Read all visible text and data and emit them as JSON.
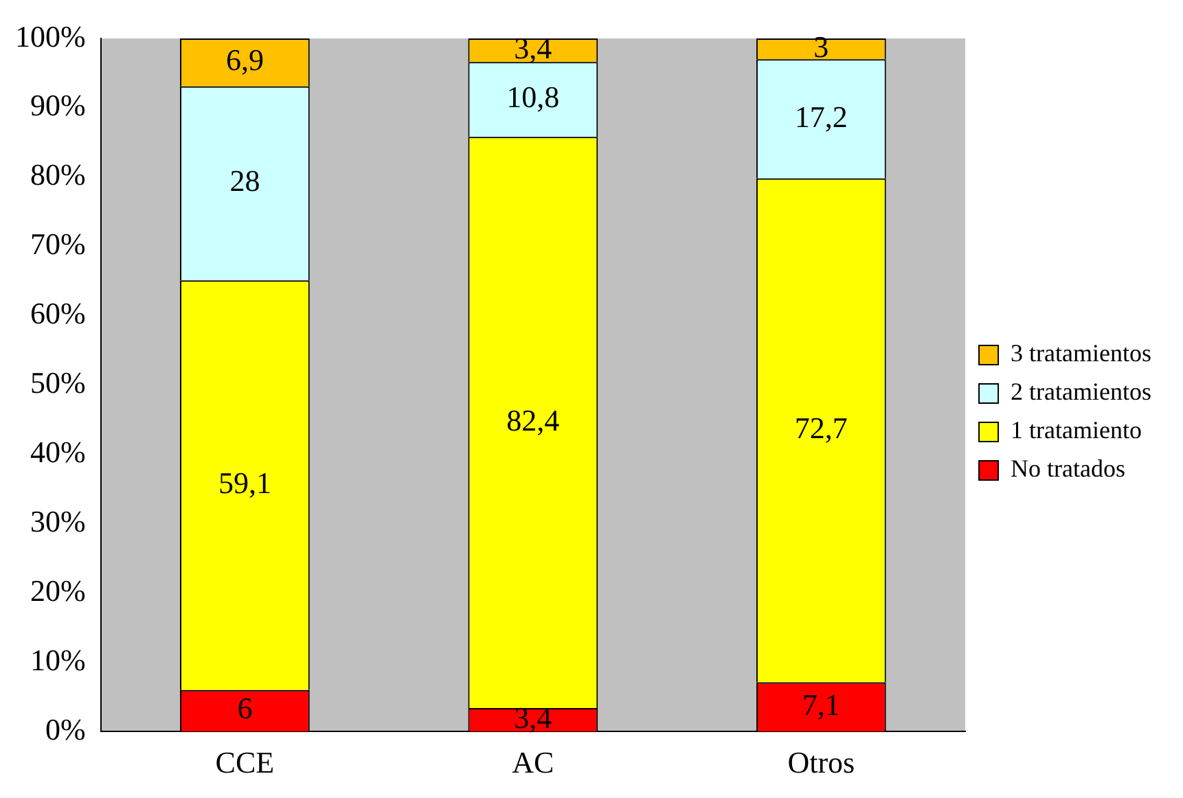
{
  "chart_data": {
    "type": "bar",
    "stacked": true,
    "categories": [
      "CCE",
      "AC",
      "Otros"
    ],
    "series": [
      {
        "name": "No tratados",
        "color": "#ff0000",
        "values": [
          6,
          3.4,
          7.1
        ],
        "value_labels": [
          "6",
          "3,4",
          "7,1"
        ]
      },
      {
        "name": "1 tratamiento",
        "color": "#ffff00",
        "values": [
          59.1,
          82.4,
          72.7
        ],
        "value_labels": [
          "59,1",
          "82,4",
          "72,7"
        ]
      },
      {
        "name": "2 tratamientos",
        "color": "#ccffff",
        "values": [
          28,
          10.8,
          17.2
        ],
        "value_labels": [
          "28",
          "10,8",
          "17,2"
        ]
      },
      {
        "name": "3 tratamientos",
        "color": "#ffc000",
        "values": [
          6.9,
          3.4,
          3
        ],
        "value_labels": [
          "6,9",
          "3,4",
          "3"
        ]
      }
    ],
    "ylim": [
      0,
      100
    ],
    "yticks": [
      {
        "value": 0,
        "label": "0%"
      },
      {
        "value": 10,
        "label": "10%"
      },
      {
        "value": 20,
        "label": "20%"
      },
      {
        "value": 30,
        "label": "30%"
      },
      {
        "value": 40,
        "label": "40%"
      },
      {
        "value": 50,
        "label": "50%"
      },
      {
        "value": 60,
        "label": "60%"
      },
      {
        "value": 70,
        "label": "70%"
      },
      {
        "value": 80,
        "label": "80%"
      },
      {
        "value": 90,
        "label": "90%"
      },
      {
        "value": 100,
        "label": "100%"
      }
    ],
    "grid": false,
    "legend": "right"
  }
}
